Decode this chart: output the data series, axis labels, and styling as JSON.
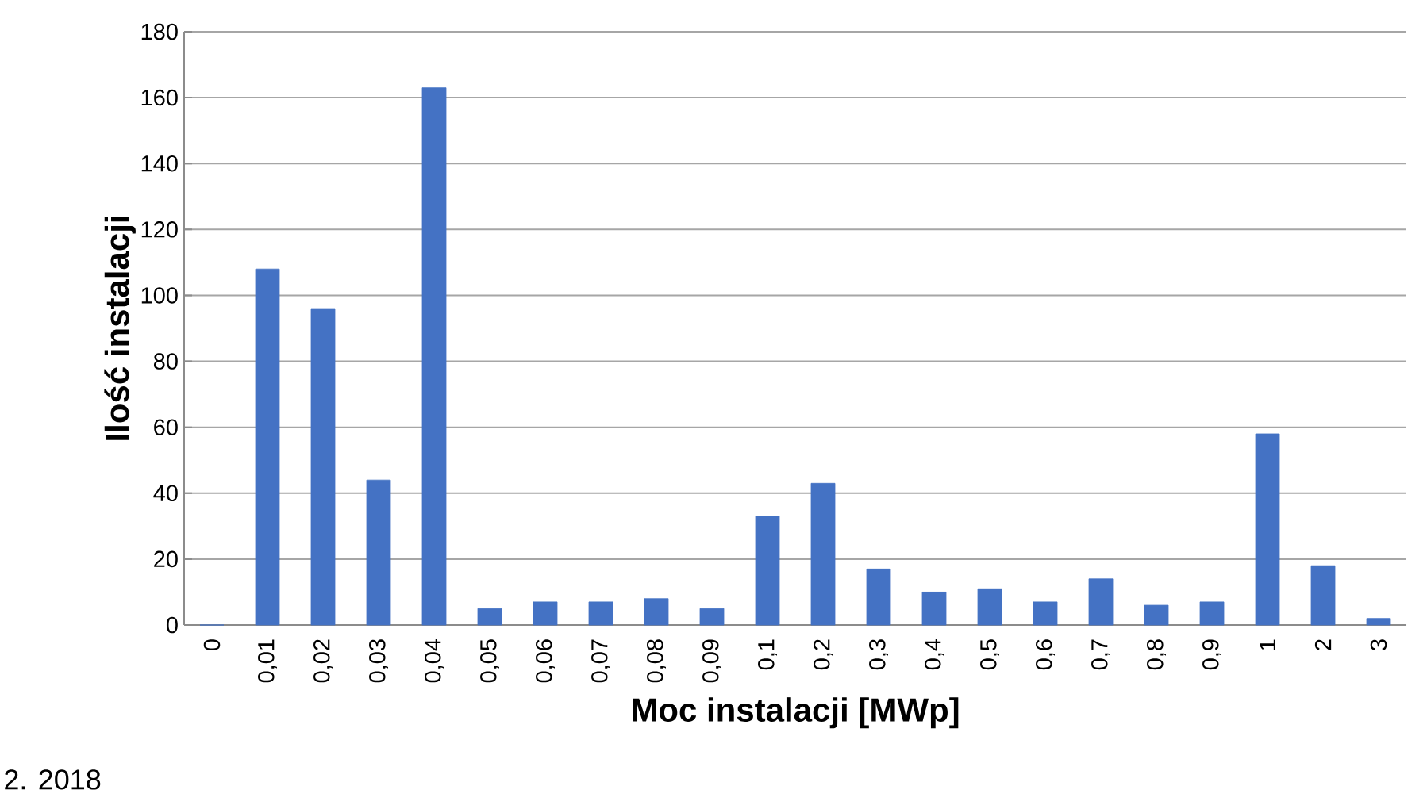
{
  "chart_data": {
    "type": "bar",
    "xlabel": "Moc instalacji [MWp]",
    "ylabel": "Ilość instalacji",
    "categories": [
      "0",
      "0,01",
      "0,02",
      "0,03",
      "0,04",
      "0,05",
      "0,06",
      "0,07",
      "0,08",
      "0,09",
      "0,1",
      "0,2",
      "0,3",
      "0,4",
      "0,5",
      "0,6",
      "0,7",
      "0,8",
      "0,9",
      "1",
      "2",
      "3"
    ],
    "values": [
      0,
      108,
      96,
      44,
      163,
      5,
      7,
      7,
      8,
      5,
      33,
      43,
      17,
      10,
      11,
      7,
      14,
      6,
      7,
      58,
      18,
      2
    ],
    "color": "#4472c4",
    "ylim": [
      0,
      180
    ],
    "yticks": [
      0,
      20,
      40,
      60,
      80,
      100,
      120,
      140,
      160,
      180
    ],
    "grid": "y",
    "annotations": [
      "2. 2018"
    ]
  }
}
